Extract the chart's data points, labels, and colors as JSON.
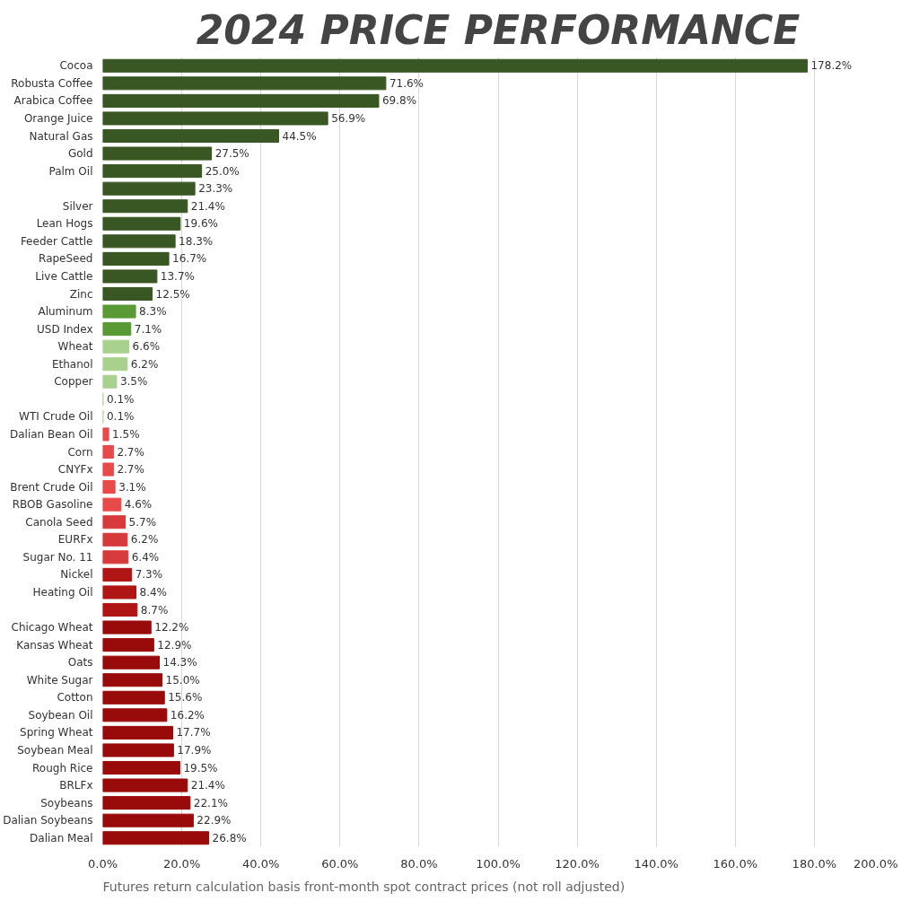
{
  "chart_data": {
    "type": "bar",
    "orientation": "horizontal",
    "title": "2024 PRICE PERFORMANCE",
    "categories": [
      "Cocoa",
      "Robusta Coffee",
      "Arabica Coffee",
      "Orange Juice",
      "Natural Gas",
      "Gold",
      "Palm Oil",
      null,
      "Silver",
      "Lean Hogs",
      "Feeder Cattle",
      "RapeSeed",
      "Live Cattle",
      "Zinc",
      "Aluminum",
      "USD Index",
      "Wheat",
      "Ethanol",
      "Copper",
      null,
      "WTI Crude Oil",
      "Dalian Bean Oil",
      "Corn",
      "CNYFx",
      "Brent Crude Oil",
      "RBOB Gasoline",
      "Canola Seed",
      "EURFx",
      "Sugar No. 11",
      "Nickel",
      "Heating Oil",
      null,
      "Chicago Wheat",
      "Kansas Wheat",
      "Oats",
      "White Sugar",
      "Cotton",
      "Soybean Oil",
      "Spring Wheat",
      "Soybean Meal",
      "Rough Rice",
      "BRLFx",
      "Soybeans",
      "Dalian Soybeans",
      "Dalian Meal"
    ],
    "values": [
      178.2,
      71.6,
      69.8,
      56.9,
      44.5,
      27.5,
      25.0,
      23.3,
      21.4,
      19.6,
      18.3,
      16.7,
      13.7,
      12.5,
      8.3,
      7.1,
      6.6,
      6.2,
      3.5,
      0.1,
      0.1,
      1.5,
      2.7,
      2.7,
      3.1,
      4.6,
      5.7,
      6.2,
      6.4,
      7.3,
      8.4,
      8.7,
      12.2,
      12.9,
      14.3,
      15.0,
      15.6,
      16.2,
      17.7,
      17.9,
      19.5,
      21.4,
      22.1,
      22.9,
      26.8
    ],
    "value_labels": [
      "178.2%",
      "71.6%",
      "69.8%",
      "56.9%",
      "44.5%",
      "27.5%",
      "25.0%",
      "23.3%",
      "21.4%",
      "19.6%",
      "18.3%",
      "16.7%",
      "13.7%",
      "12.5%",
      "8.3%",
      "7.1%",
      "6.6%",
      "6.2%",
      "3.5%",
      "0.1%",
      "0.1%",
      "1.5%",
      "2.7%",
      "2.7%",
      "3.1%",
      "4.6%",
      "5.7%",
      "6.2%",
      "6.4%",
      "7.3%",
      "8.4%",
      "8.7%",
      "12.2%",
      "12.9%",
      "14.3%",
      "15.0%",
      "15.6%",
      "16.2%",
      "17.7%",
      "17.9%",
      "19.5%",
      "21.4%",
      "22.1%",
      "22.9%",
      "26.8%"
    ],
    "colors": [
      "#385723",
      "#385723",
      "#385723",
      "#385723",
      "#385723",
      "#385723",
      "#385723",
      "#385723",
      "#385723",
      "#385723",
      "#385723",
      "#385723",
      "#385723",
      "#385723",
      "#5a9a35",
      "#5a9a35",
      "#a9d18e",
      "#a9d18e",
      "#a9d18e",
      "#a9d18e",
      "#a9d18e",
      "#e84a4a",
      "#e84a4a",
      "#e84a4a",
      "#e84a4a",
      "#e84a4a",
      "#d63a3a",
      "#d63a3a",
      "#d63a3a",
      "#b01515",
      "#b01515",
      "#b01515",
      "#990a0a",
      "#990a0a",
      "#990a0a",
      "#990a0a",
      "#990a0a",
      "#990a0a",
      "#990a0a",
      "#990a0a",
      "#990a0a",
      "#990a0a",
      "#990a0a",
      "#990a0a",
      "#990a0a"
    ],
    "xlim": [
      0,
      200
    ],
    "xticks": [
      {
        "value": 0,
        "label": "0.0%"
      },
      {
        "value": 20,
        "label": "20.0%"
      },
      {
        "value": 40,
        "label": "40.0%"
      },
      {
        "value": 60,
        "label": "60.0%"
      },
      {
        "value": 80,
        "label": "80.0%"
      },
      {
        "value": 100,
        "label": "100.0%"
      },
      {
        "value": 120,
        "label": "120.0%"
      },
      {
        "value": 140,
        "label": "140.0%"
      },
      {
        "value": 160,
        "label": "160.0%"
      },
      {
        "value": 180,
        "label": "180.0%"
      },
      {
        "value": 200,
        "label": "200.0%"
      }
    ],
    "grid": "x",
    "annotations": [
      "Futures return calculation basis front-month spot contract prices (not roll adjusted)"
    ]
  }
}
